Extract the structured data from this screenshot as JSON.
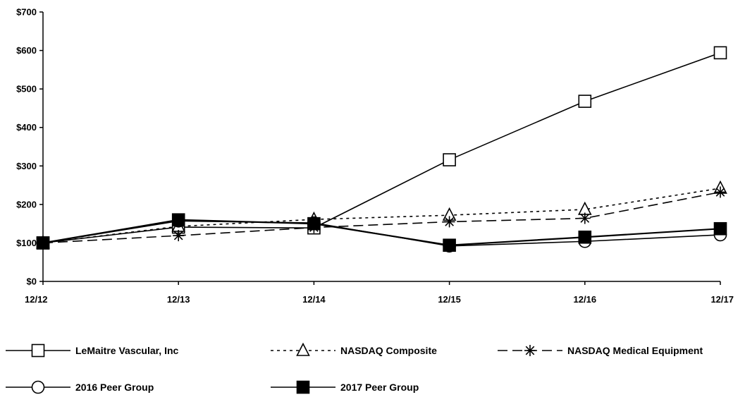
{
  "chart_data": {
    "type": "line",
    "categories": [
      "12/12",
      "12/13",
      "12/14",
      "12/15",
      "12/16",
      "12/17"
    ],
    "y_ticks": [
      "$0",
      "$100",
      "$200",
      "$300",
      "$400",
      "$500",
      "$600",
      "$700"
    ],
    "ylim": [
      0,
      700
    ],
    "grid": false,
    "legend_position": "bottom",
    "series": [
      {
        "name": "LeMaitre Vascular, Inc",
        "values": [
          100,
          141,
          139,
          316,
          468,
          594
        ],
        "marker": "square-open",
        "line": "solid"
      },
      {
        "name": "NASDAQ Composite",
        "values": [
          100,
          143,
          161,
          172,
          187,
          242
        ],
        "marker": "triangle-open",
        "line": "dotted"
      },
      {
        "name": "NASDAQ Medical Equipment",
        "values": [
          100,
          119,
          140,
          155,
          164,
          232
        ],
        "marker": "asterisk",
        "line": "dashed"
      },
      {
        "name": "2016 Peer Group",
        "values": [
          100,
          157,
          152,
          92,
          104,
          121
        ],
        "marker": "circle-open",
        "line": "solid"
      },
      {
        "name": "2017 Peer Group",
        "values": [
          100,
          160,
          150,
          94,
          115,
          137
        ],
        "marker": "square-filled",
        "line": "solid"
      }
    ]
  }
}
